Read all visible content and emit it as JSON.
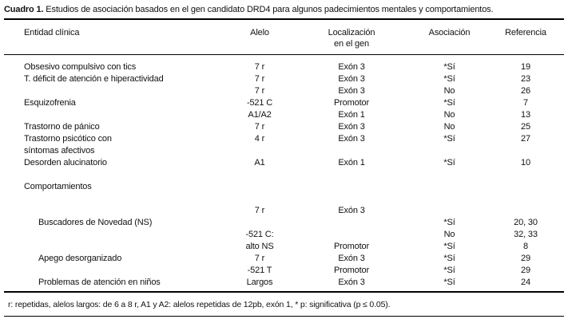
{
  "title": {
    "label": "Cuadro 1.",
    "text": " Estudios de asociación basados en el gen candidato DRD4 para algunos padecimientos mentales y comportamientos."
  },
  "table": {
    "headers": {
      "entity": "Entidad clínica",
      "allele": "Alelo",
      "location": "Localización\nen el gen",
      "association": "Asociación",
      "reference": "Referencia"
    },
    "rows": [
      {
        "entity": "Obsesivo compulsivo con tics",
        "allele": "7 r",
        "location": "Exón 3",
        "association": "*Sí",
        "reference": "19"
      },
      {
        "entity": "T. déficit de atención e hiperactividad",
        "allele": "7 r",
        "location": "Exón 3",
        "association": "*Sí",
        "reference": "23"
      },
      {
        "entity": "",
        "allele": "7 r",
        "location": "Exón 3",
        "association": "No",
        "reference": "26"
      },
      {
        "entity": "Esquizofrenia",
        "allele": "-521 C",
        "location": "Promotor",
        "association": "*Sí",
        "reference": "7"
      },
      {
        "entity": "",
        "allele": "A1/A2",
        "location": "Exón 1",
        "association": "No",
        "reference": "13"
      },
      {
        "entity": "Trastorno de pánico",
        "allele": "7 r",
        "location": "Exón 3",
        "association": "No",
        "reference": "25"
      },
      {
        "entity": "Trastorno psicótico con",
        "allele": "4 r",
        "location": "Exón 3",
        "association": "*Sí",
        "reference": "27"
      },
      {
        "entity": "síntomas afectivos",
        "allele": "",
        "location": "",
        "association": "",
        "reference": ""
      },
      {
        "entity": "Desorden alucinatorio",
        "allele": "A1",
        "location": "Exón 1",
        "association": "*Sí",
        "reference": "10"
      },
      {
        "entity": "Comportamientos",
        "section": true
      },
      {
        "entity": "",
        "allele": "7 r",
        "location": "Exón 3",
        "association": "",
        "reference": ""
      },
      {
        "entity": "Buscadores de Novedad (NS)",
        "indent": true,
        "allele": "",
        "location": "",
        "association": "*Sí",
        "reference": "20, 30"
      },
      {
        "entity": "",
        "allele": "-521 C:",
        "location": "",
        "association": "No",
        "reference": "32, 33"
      },
      {
        "entity": "",
        "allele": "alto NS",
        "location": "Promotor",
        "association": "*Sí",
        "reference": "8"
      },
      {
        "entity": "Apego desorganizado",
        "indent": true,
        "allele": "7 r",
        "location": "Exón 3",
        "association": "*Sí",
        "reference": "29"
      },
      {
        "entity": "",
        "allele": "-521 T",
        "location": "Promotor",
        "association": "*Sí",
        "reference": "29"
      },
      {
        "entity": "Problemas de atención en niños",
        "indent": true,
        "allele": "Largos",
        "location": "Exón 3",
        "association": "*Sí",
        "reference": "24"
      }
    ]
  },
  "footnote": "r: repetidas, alelos largos: de 6 a 8 r, A1 y A2: alelos repetidas de 12pb, exón 1, * p: significativa (p ≤ 0.05)."
}
